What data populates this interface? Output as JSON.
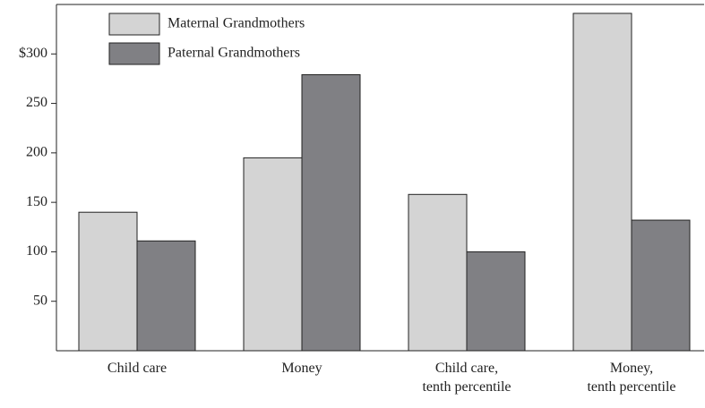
{
  "chart_data": {
    "type": "bar",
    "categories": [
      [
        "Child care"
      ],
      [
        "Money"
      ],
      [
        "Child care,",
        "tenth percentile"
      ],
      [
        "Money,",
        "tenth percentile"
      ]
    ],
    "series": [
      {
        "name": "Maternal Grandmothers",
        "color": "#d4d4d4",
        "values": [
          140,
          195,
          158,
          341
        ]
      },
      {
        "name": "Paternal Grandmothers",
        "color": "#808084",
        "values": [
          111,
          279,
          100,
          132
        ]
      }
    ],
    "ylim": [
      0,
      350
    ],
    "yticks": [
      50,
      100,
      150,
      200,
      250,
      {
        "value": 300,
        "label": "$300"
      }
    ]
  }
}
